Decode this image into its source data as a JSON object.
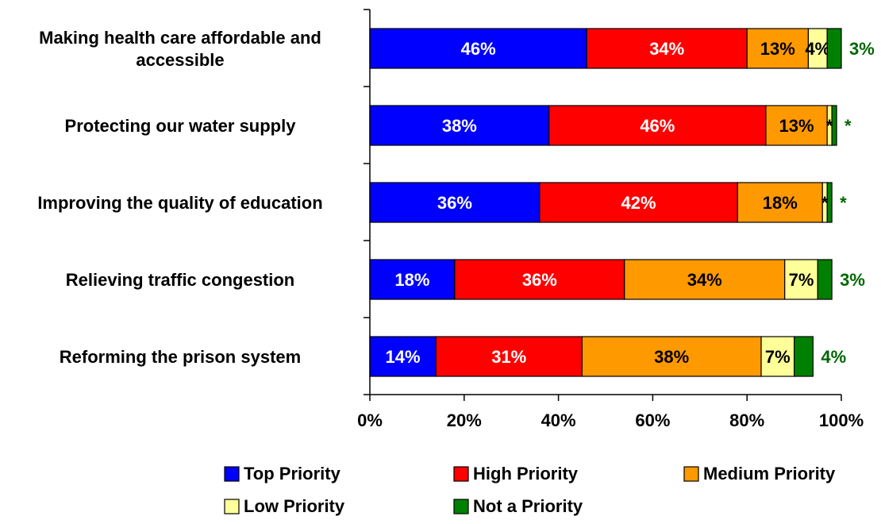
{
  "chart_data": {
    "type": "bar",
    "orientation": "horizontal",
    "stacked": true,
    "categories": [
      [
        "Making health care affordable and",
        "accessible"
      ],
      [
        "Protecting our water supply"
      ],
      [
        "Improving the quality of education"
      ],
      [
        "Relieving traffic congestion"
      ],
      [
        "Reforming the prison system"
      ]
    ],
    "series": [
      {
        "name": "Top Priority",
        "color": "#0000FF",
        "label_color": "#FFFFFF",
        "values": [
          46,
          38,
          36,
          18,
          14
        ],
        "labels": [
          "46%",
          "38%",
          "36%",
          "18%",
          "14%"
        ]
      },
      {
        "name": "High Priority",
        "color": "#FF0000",
        "label_color": "#FFFFFF",
        "values": [
          34,
          46,
          42,
          36,
          31
        ],
        "labels": [
          "34%",
          "46%",
          "42%",
          "36%",
          "31%"
        ]
      },
      {
        "name": "Medium Priority",
        "color": "#FF9900",
        "label_color": "#000000",
        "values": [
          13,
          13,
          18,
          34,
          38
        ],
        "labels": [
          "13%",
          "13%",
          "18%",
          "34%",
          "38%"
        ]
      },
      {
        "name": "Low Priority",
        "color": "#FFFF99",
        "label_color": "#000000",
        "values": [
          4,
          1,
          1,
          7,
          7
        ],
        "labels": [
          "4%",
          "*",
          "*",
          "7%",
          "7%"
        ]
      },
      {
        "name": "Not a Priority",
        "color": "#008000",
        "label_color": "#006600",
        "values": [
          3,
          1,
          1,
          3,
          4
        ],
        "labels": [
          "3%",
          "*",
          "*",
          "3%",
          "4%"
        ],
        "label_position": "outside"
      }
    ],
    "x_ticks": [
      "0%",
      "20%",
      "40%",
      "60%",
      "80%",
      "100%"
    ],
    "xlim": [
      0,
      100
    ],
    "legend_position": "bottom",
    "grid": false,
    "title": "",
    "xlabel": "",
    "ylabel": ""
  }
}
